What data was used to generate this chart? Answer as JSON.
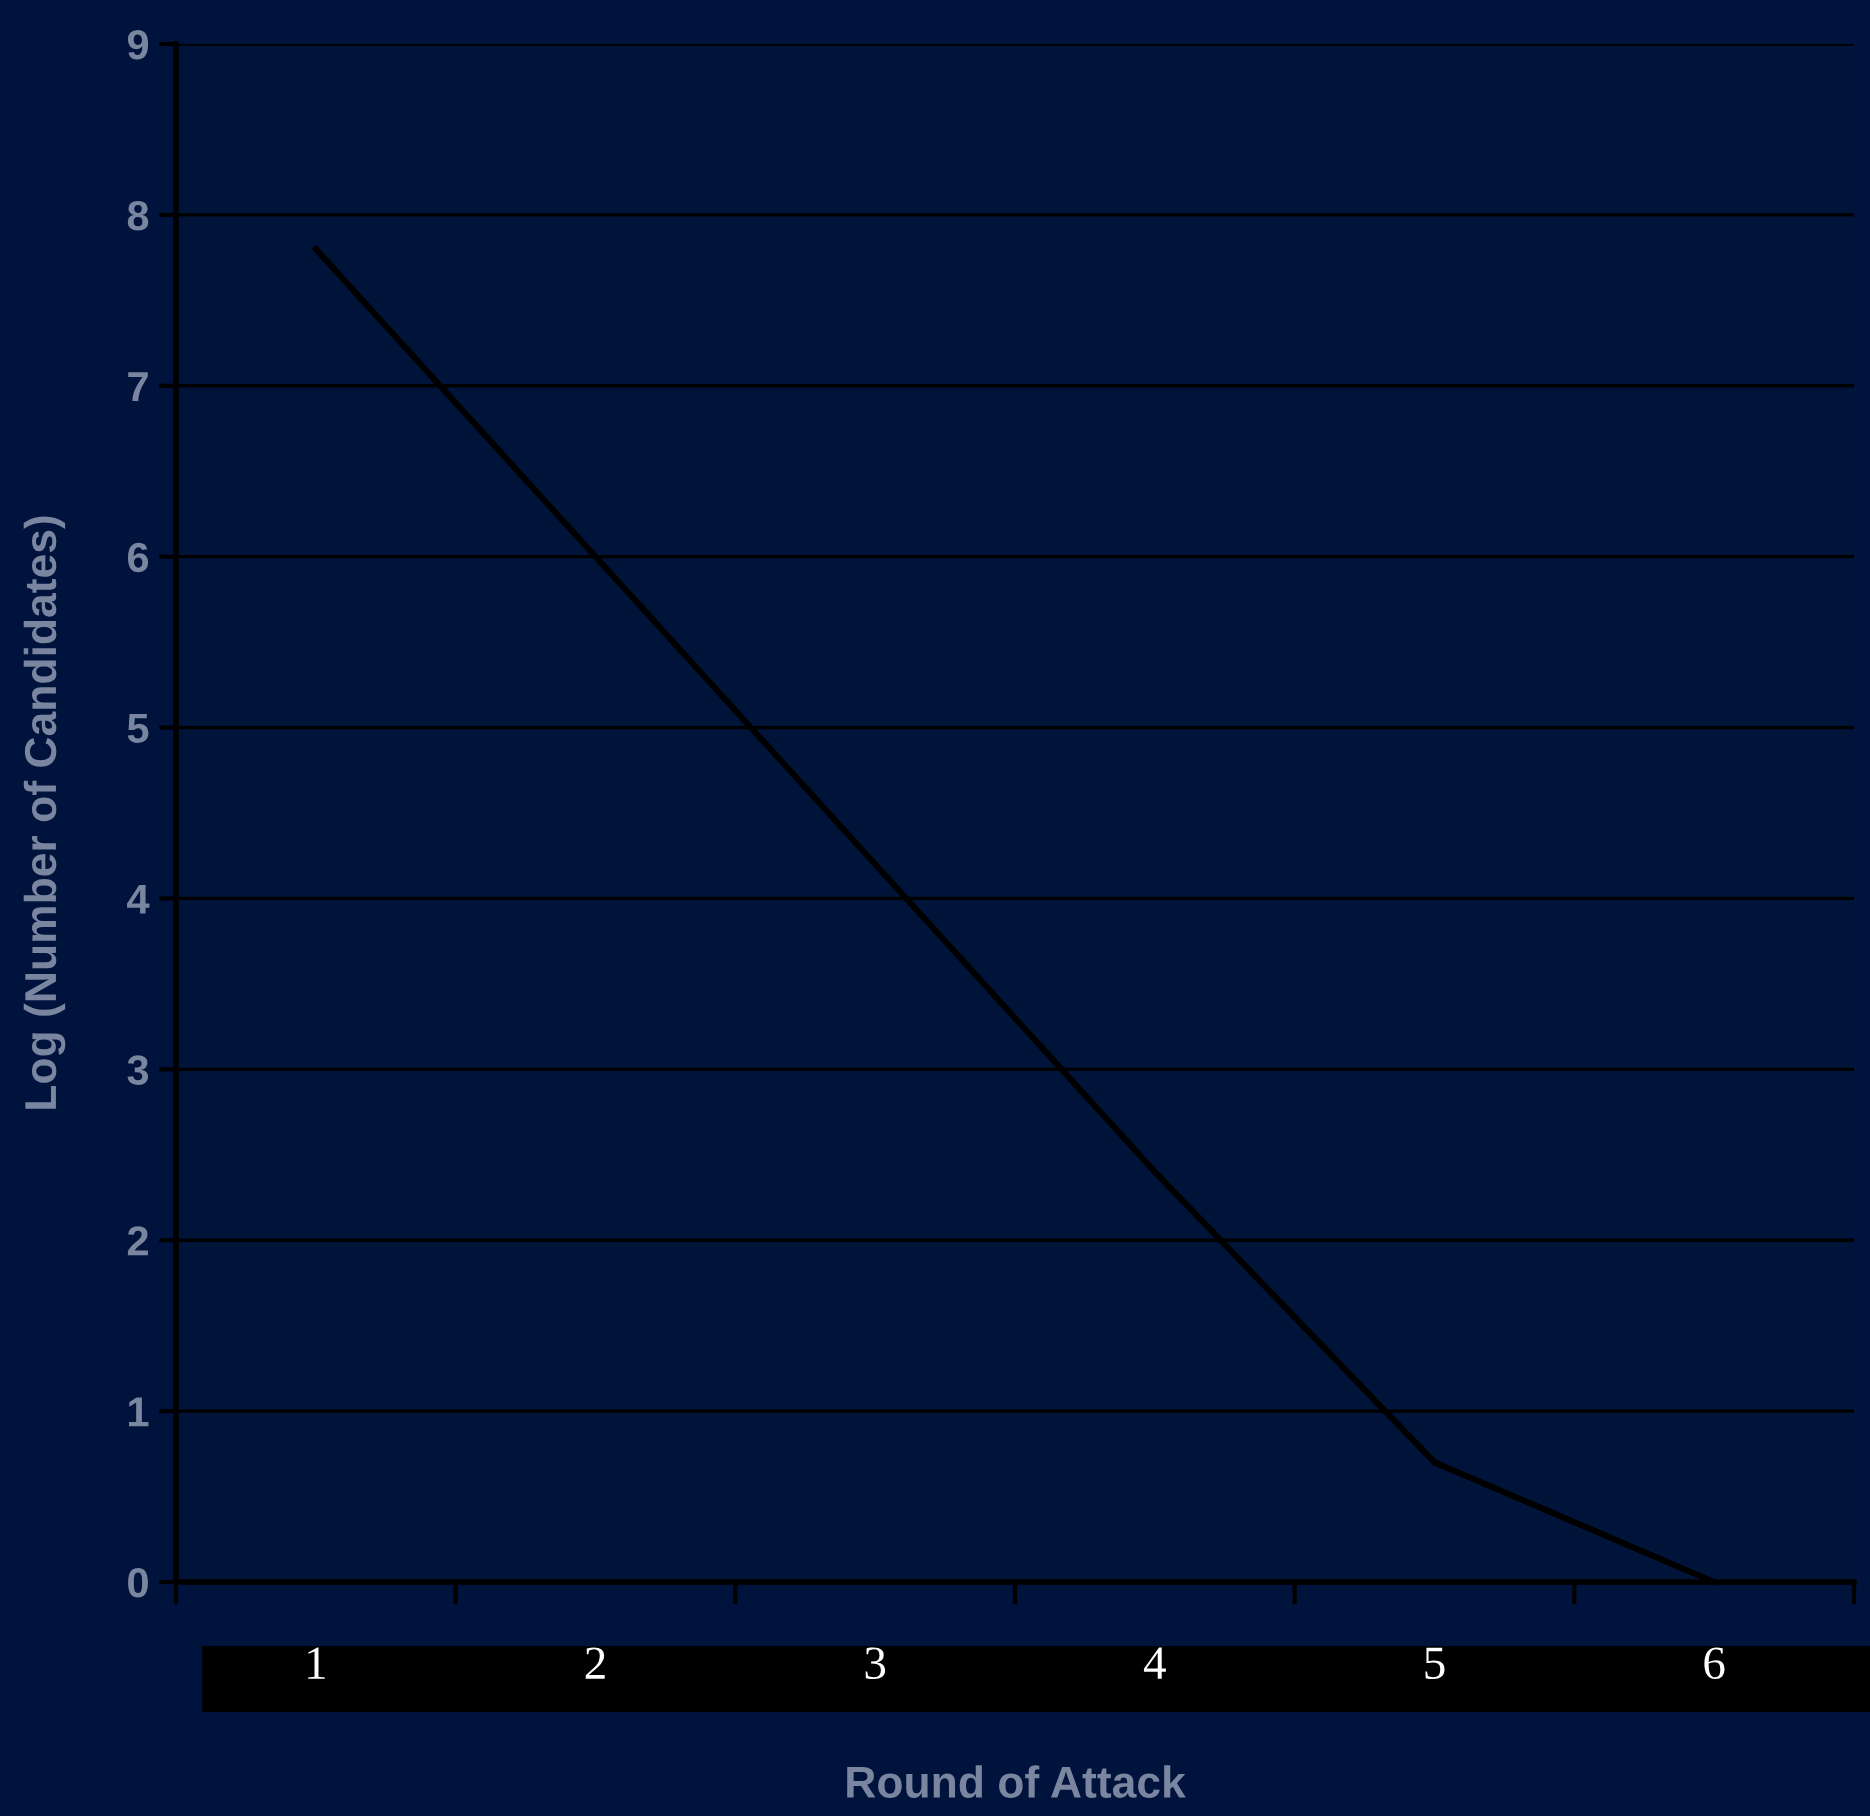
{
  "chart_data": {
    "type": "line",
    "xlabel": "Round of Attack",
    "ylabel": "Log (Number of Candidates)",
    "categories": [
      "1",
      "2",
      "3",
      "4",
      "5",
      "6"
    ],
    "series": [
      {
        "color": "#000000",
        "values": [
          7.8,
          6.0,
          4.2,
          2.4,
          0.7,
          0
        ]
      }
    ],
    "ylim": [
      0,
      9
    ],
    "yticks": [
      0,
      1,
      2,
      3,
      4,
      5,
      6,
      7,
      8,
      9
    ],
    "grid": "y",
    "marker": "none",
    "line_style": "solid",
    "legend": false
  }
}
